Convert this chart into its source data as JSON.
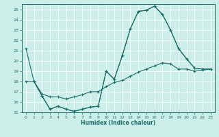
{
  "xlabel": "Humidex (Indice chaleur)",
  "xlim": [
    -0.5,
    23.5
  ],
  "ylim": [
    15,
    25.5
  ],
  "yticks": [
    15,
    16,
    17,
    18,
    19,
    20,
    21,
    22,
    23,
    24,
    25
  ],
  "xticks": [
    0,
    1,
    2,
    3,
    4,
    5,
    6,
    7,
    8,
    9,
    10,
    11,
    12,
    13,
    14,
    15,
    16,
    17,
    18,
    19,
    20,
    21,
    22,
    23
  ],
  "bg_color": "#cceee8",
  "line_color": "#1a6b6b",
  "line1_x": [
    0,
    1,
    2,
    3,
    4,
    5,
    6,
    7,
    8,
    9,
    10,
    11,
    12,
    13,
    14,
    15,
    16,
    17,
    18,
    19,
    20,
    21,
    22,
    23
  ],
  "line1_y": [
    21.2,
    18.0,
    16.6,
    15.3,
    15.6,
    15.3,
    15.1,
    15.3,
    15.5,
    15.6,
    19.0,
    18.2,
    20.5,
    23.1,
    24.8,
    24.9,
    25.3,
    24.5,
    23.0,
    21.2,
    20.2,
    19.3,
    19.2,
    19.2
  ],
  "line2_x": [
    1,
    2,
    3,
    4,
    5,
    6,
    7,
    8,
    9,
    10,
    11,
    12,
    13,
    14,
    15,
    16,
    17,
    18,
    19,
    20,
    21,
    22,
    23
  ],
  "line2_y": [
    18.0,
    16.6,
    15.3,
    15.6,
    15.3,
    15.1,
    15.3,
    15.5,
    15.6,
    19.0,
    18.2,
    20.5,
    23.1,
    24.8,
    24.9,
    25.3,
    24.5,
    23.0,
    21.2,
    20.2,
    19.3,
    19.2,
    19.2
  ],
  "line3_x": [
    0,
    1,
    2,
    3,
    4,
    5,
    6,
    7,
    8,
    9,
    10,
    11,
    12,
    13,
    14,
    15,
    16,
    17,
    18,
    19,
    20,
    21,
    22,
    23
  ],
  "line3_y": [
    18.0,
    18.0,
    16.8,
    16.5,
    16.5,
    16.3,
    16.5,
    16.7,
    17.0,
    17.0,
    17.5,
    17.9,
    18.1,
    18.5,
    18.9,
    19.2,
    19.5,
    19.8,
    19.7,
    19.2,
    19.2,
    19.0,
    19.1,
    19.2
  ]
}
